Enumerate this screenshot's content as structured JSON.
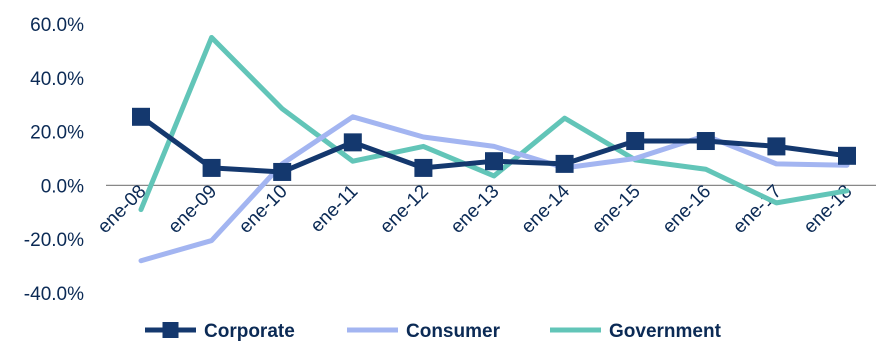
{
  "chart_data": {
    "type": "line",
    "categories": [
      "ene-08",
      "ene-09",
      "ene-10",
      "ene-11",
      "ene-12",
      "ene-13",
      "ene-14",
      "ene-15",
      "ene-16",
      "ene-17",
      "ene-18"
    ],
    "y_ticks": [
      "60.0%",
      "40.0%",
      "20.0%",
      "0.0%",
      "-20.0%",
      "-40.0%"
    ],
    "ylim": [
      -40,
      60
    ],
    "grid": false,
    "legend_position": "bottom",
    "series": [
      {
        "name": "Corporate",
        "color": "#14386e",
        "marker": "square",
        "values": [
          25.5,
          6.5,
          5.0,
          16.0,
          6.5,
          9.0,
          8.0,
          16.5,
          16.5,
          14.5,
          11.0
        ]
      },
      {
        "name": "Consumer",
        "color": "#a3b5f1",
        "marker": "none",
        "values": [
          -28.0,
          -20.5,
          8.0,
          25.5,
          18.0,
          14.5,
          6.5,
          10.0,
          18.5,
          8.0,
          7.5
        ]
      },
      {
        "name": "Government",
        "color": "#62c5b8",
        "marker": "none",
        "values": [
          -9.0,
          55.0,
          28.5,
          9.0,
          14.5,
          3.5,
          25.0,
          9.5,
          6.0,
          -6.5,
          -2.0
        ]
      }
    ]
  }
}
